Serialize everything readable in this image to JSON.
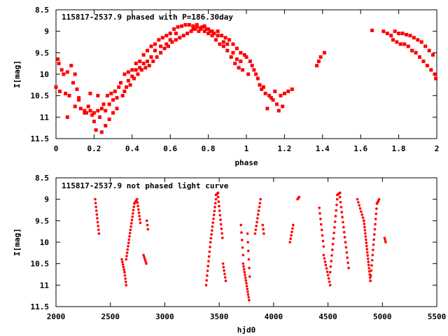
{
  "chart_data": [
    {
      "type": "scatter",
      "title": "115817-2537.9 phased with P=186.30day",
      "xlabel": "phase",
      "ylabel": "I[mag]",
      "xlim": [
        0,
        2
      ],
      "ylim": [
        11.5,
        8.5
      ],
      "y_inverted": true,
      "xticks": [
        0,
        0.2,
        0.4,
        0.6,
        0.8,
        1,
        1.2,
        1.4,
        1.6,
        1.8,
        2
      ],
      "xtick_labels": [
        "0",
        "0.2",
        "0.4",
        "0.6",
        "0.8",
        "1",
        "1.2",
        "1.4",
        "1.6",
        "1.8",
        "2"
      ],
      "yticks": [
        8.5,
        9,
        9.5,
        10,
        10.5,
        11,
        11.5
      ],
      "ytick_labels": [
        "8.5",
        "9",
        "9.5",
        "10",
        "10.5",
        "11",
        "11.5"
      ],
      "grid": false,
      "marker_color": "#ff0000",
      "points": [
        [
          0.0,
          10.3
        ],
        [
          0.01,
          9.65
        ],
        [
          0.015,
          9.75
        ],
        [
          0.02,
          10.4
        ],
        [
          0.03,
          9.9
        ],
        [
          0.04,
          10.0
        ],
        [
          0.05,
          10.45
        ],
        [
          0.06,
          9.95
        ],
        [
          0.07,
          10.5
        ],
        [
          0.08,
          9.8
        ],
        [
          0.09,
          10.2
        ],
        [
          0.1,
          10.0
        ],
        [
          0.11,
          10.35
        ],
        [
          0.12,
          10.6
        ],
        [
          0.13,
          10.8
        ],
        [
          0.15,
          10.9
        ],
        [
          0.1,
          10.75
        ],
        [
          0.12,
          10.55
        ],
        [
          0.06,
          11.0
        ],
        [
          0.18,
          10.45
        ],
        [
          0.19,
          10.95
        ],
        [
          0.2,
          11.1
        ],
        [
          0.21,
          11.3
        ],
        [
          0.22,
          10.5
        ],
        [
          0.23,
          11.0
        ],
        [
          0.24,
          11.35
        ],
        [
          0.25,
          10.7
        ],
        [
          0.26,
          11.2
        ],
        [
          0.27,
          10.5
        ],
        [
          0.28,
          11.05
        ],
        [
          0.29,
          10.45
        ],
        [
          0.3,
          10.9
        ],
        [
          0.31,
          10.4
        ],
        [
          0.32,
          10.8
        ],
        [
          0.33,
          10.3
        ],
        [
          0.15,
          10.85
        ],
        [
          0.16,
          10.9
        ],
        [
          0.17,
          10.75
        ],
        [
          0.18,
          10.85
        ],
        [
          0.2,
          10.9
        ],
        [
          0.22,
          10.85
        ],
        [
          0.24,
          10.8
        ],
        [
          0.26,
          10.85
        ],
        [
          0.28,
          10.7
        ],
        [
          0.3,
          10.6
        ],
        [
          0.32,
          10.55
        ],
        [
          0.34,
          10.2
        ],
        [
          0.35,
          10.5
        ],
        [
          0.36,
          10.0
        ],
        [
          0.37,
          10.3
        ],
        [
          0.38,
          9.95
        ],
        [
          0.39,
          10.25
        ],
        [
          0.4,
          9.9
        ],
        [
          0.41,
          10.1
        ],
        [
          0.42,
          9.75
        ],
        [
          0.43,
          10.0
        ],
        [
          0.44,
          9.7
        ],
        [
          0.45,
          9.9
        ],
        [
          0.46,
          9.55
        ],
        [
          0.47,
          9.85
        ],
        [
          0.48,
          9.45
        ],
        [
          0.49,
          9.8
        ],
        [
          0.5,
          9.35
        ],
        [
          0.36,
          10.4
        ],
        [
          0.38,
          10.15
        ],
        [
          0.4,
          10.05
        ],
        [
          0.42,
          9.9
        ],
        [
          0.44,
          9.85
        ],
        [
          0.46,
          9.75
        ],
        [
          0.48,
          9.7
        ],
        [
          0.5,
          9.6
        ],
        [
          0.51,
          9.7
        ],
        [
          0.52,
          9.3
        ],
        [
          0.53,
          9.6
        ],
        [
          0.54,
          9.2
        ],
        [
          0.55,
          9.5
        ],
        [
          0.56,
          9.15
        ],
        [
          0.57,
          9.4
        ],
        [
          0.58,
          9.1
        ],
        [
          0.59,
          9.35
        ],
        [
          0.6,
          9.05
        ],
        [
          0.61,
          9.25
        ],
        [
          0.62,
          8.95
        ],
        [
          0.63,
          9.2
        ],
        [
          0.64,
          8.9
        ],
        [
          0.65,
          9.15
        ],
        [
          0.66,
          8.88
        ],
        [
          0.67,
          9.1
        ],
        [
          0.68,
          8.85
        ],
        [
          0.69,
          9.05
        ],
        [
          0.7,
          8.85
        ],
        [
          0.52,
          9.45
        ],
        [
          0.55,
          9.35
        ],
        [
          0.58,
          9.3
        ],
        [
          0.6,
          9.2
        ],
        [
          0.63,
          9.05
        ],
        [
          0.71,
          9.0
        ],
        [
          0.72,
          8.88
        ],
        [
          0.73,
          8.95
        ],
        [
          0.74,
          8.9
        ],
        [
          0.75,
          9.0
        ],
        [
          0.76,
          8.92
        ],
        [
          0.77,
          8.9
        ],
        [
          0.78,
          9.0
        ],
        [
          0.79,
          8.95
        ],
        [
          0.8,
          9.05
        ],
        [
          0.81,
          9.0
        ],
        [
          0.82,
          9.1
        ],
        [
          0.83,
          9.05
        ],
        [
          0.84,
          9.2
        ],
        [
          0.85,
          9.0
        ],
        [
          0.86,
          9.3
        ],
        [
          0.87,
          9.1
        ],
        [
          0.88,
          9.35
        ],
        [
          0.72,
          8.95
        ],
        [
          0.74,
          8.85
        ],
        [
          0.76,
          8.95
        ],
        [
          0.78,
          8.88
        ],
        [
          0.8,
          8.95
        ],
        [
          0.82,
          9.0
        ],
        [
          0.89,
          9.15
        ],
        [
          0.9,
          9.45
        ],
        [
          0.91,
          9.2
        ],
        [
          0.92,
          9.6
        ],
        [
          0.93,
          9.3
        ],
        [
          0.94,
          9.75
        ],
        [
          0.95,
          9.4
        ],
        [
          0.96,
          9.85
        ],
        [
          0.97,
          9.5
        ],
        [
          0.98,
          9.9
        ],
        [
          0.99,
          9.55
        ],
        [
          1.0,
          9.6
        ],
        [
          1.01,
          10.0
        ],
        [
          1.02,
          9.7
        ],
        [
          1.03,
          9.8
        ],
        [
          1.04,
          9.9
        ],
        [
          1.05,
          10.0
        ],
        [
          0.85,
          9.1
        ],
        [
          0.88,
          9.25
        ],
        [
          0.9,
          9.3
        ],
        [
          0.93,
          9.5
        ],
        [
          0.95,
          9.65
        ],
        [
          0.97,
          9.7
        ],
        [
          1.06,
          10.1
        ],
        [
          1.07,
          10.25
        ],
        [
          1.08,
          10.35
        ],
        [
          1.09,
          10.3
        ],
        [
          1.1,
          10.45
        ],
        [
          1.11,
          10.8
        ],
        [
          1.12,
          10.5
        ],
        [
          1.13,
          10.55
        ],
        [
          1.14,
          10.6
        ],
        [
          1.15,
          10.4
        ],
        [
          1.16,
          10.7
        ],
        [
          1.17,
          10.85
        ],
        [
          1.18,
          10.5
        ],
        [
          1.19,
          10.75
        ],
        [
          1.2,
          10.45
        ],
        [
          1.22,
          10.4
        ],
        [
          1.24,
          10.35
        ],
        [
          1.37,
          9.8
        ],
        [
          1.38,
          9.7
        ],
        [
          1.39,
          9.6
        ],
        [
          1.41,
          9.5
        ],
        [
          1.66,
          8.98
        ],
        [
          1.72,
          9.0
        ],
        [
          1.74,
          9.05
        ],
        [
          1.76,
          9.1
        ],
        [
          1.77,
          9.2
        ],
        [
          1.78,
          9.0
        ],
        [
          1.79,
          9.25
        ],
        [
          1.8,
          9.05
        ],
        [
          1.81,
          9.3
        ],
        [
          1.82,
          9.05
        ],
        [
          1.83,
          9.3
        ],
        [
          1.84,
          9.08
        ],
        [
          1.85,
          9.35
        ],
        [
          1.86,
          9.1
        ],
        [
          1.87,
          9.45
        ],
        [
          1.88,
          9.15
        ],
        [
          1.89,
          9.5
        ],
        [
          1.9,
          9.2
        ],
        [
          1.91,
          9.6
        ],
        [
          1.92,
          9.25
        ],
        [
          1.93,
          9.7
        ],
        [
          1.94,
          9.35
        ],
        [
          1.95,
          9.8
        ],
        [
          1.96,
          9.45
        ],
        [
          1.97,
          9.9
        ],
        [
          1.98,
          9.55
        ],
        [
          1.99,
          10.0
        ],
        [
          1.995,
          10.1
        ]
      ]
    },
    {
      "type": "scatter",
      "title": "115817-2537.9 not phased light curve",
      "xlabel": "hjd0",
      "ylabel": "I[mag]",
      "xlim": [
        2000,
        5500
      ],
      "ylim": [
        11.5,
        8.5
      ],
      "y_inverted": true,
      "xticks": [
        2000,
        2500,
        3000,
        3500,
        4000,
        4500,
        5000,
        5500
      ],
      "xtick_labels": [
        "2000",
        "2500",
        "3000",
        "3500",
        "4000",
        "4500",
        "5000",
        "5500"
      ],
      "yticks": [
        8.5,
        9,
        9.5,
        10,
        10.5,
        11,
        11.5
      ],
      "ytick_labels": [
        "8.5",
        "9",
        "9.5",
        "10",
        "10.5",
        "11",
        "11.5"
      ],
      "grid": false,
      "marker_color": "#ff0000",
      "segments": [
        {
          "x0": 2360,
          "x1": 2395,
          "y0": 9.0,
          "y1": 9.8,
          "n": 10
        },
        {
          "x0": 2605,
          "x1": 2630,
          "y0": 10.4,
          "y1": 10.7,
          "n": 6
        },
        {
          "x0": 2630,
          "x1": 2645,
          "y0": 10.7,
          "y1": 11.0,
          "n": 5
        },
        {
          "x0": 2645,
          "x1": 2720,
          "y0": 10.4,
          "y1": 9.1,
          "n": 18
        },
        {
          "x0": 2720,
          "x1": 2745,
          "y0": 9.1,
          "y1": 9.0,
          "n": 5
        },
        {
          "x0": 2745,
          "x1": 2775,
          "y0": 9.0,
          "y1": 9.55,
          "n": 8
        },
        {
          "x0": 2805,
          "x1": 2830,
          "y0": 10.3,
          "y1": 10.5,
          "n": 5
        },
        {
          "x0": 2835,
          "x1": 2845,
          "y0": 9.5,
          "y1": 9.7,
          "n": 3
        },
        {
          "x0": 3380,
          "x1": 3420,
          "y0": 11.0,
          "y1": 10.0,
          "n": 10
        },
        {
          "x0": 3420,
          "x1": 3470,
          "y0": 10.0,
          "y1": 9.0,
          "n": 12
        },
        {
          "x0": 3470,
          "x1": 3490,
          "y0": 8.9,
          "y1": 8.85,
          "n": 5
        },
        {
          "x0": 3490,
          "x1": 3530,
          "y0": 8.95,
          "y1": 9.9,
          "n": 10
        },
        {
          "x0": 3535,
          "x1": 3560,
          "y0": 10.5,
          "y1": 10.9,
          "n": 6
        },
        {
          "x0": 3700,
          "x1": 3720,
          "y0": 9.6,
          "y1": 10.3,
          "n": 5
        },
        {
          "x0": 3720,
          "x1": 3775,
          "y0": 10.5,
          "y1": 11.35,
          "n": 14
        },
        {
          "x0": 3760,
          "x1": 3780,
          "y0": 9.8,
          "y1": 10.8,
          "n": 6
        },
        {
          "x0": 3830,
          "x1": 3880,
          "y0": 9.8,
          "y1": 9.0,
          "n": 10
        },
        {
          "x0": 3900,
          "x1": 3910,
          "y0": 9.6,
          "y1": 9.8,
          "n": 3
        },
        {
          "x0": 4150,
          "x1": 4180,
          "y0": 10.0,
          "y1": 9.6,
          "n": 6
        },
        {
          "x0": 4220,
          "x1": 4235,
          "y0": 9.0,
          "y1": 8.95,
          "n": 3
        },
        {
          "x0": 4420,
          "x1": 4460,
          "y0": 9.2,
          "y1": 10.1,
          "n": 8
        },
        {
          "x0": 4460,
          "x1": 4520,
          "y0": 10.3,
          "y1": 11.0,
          "n": 10
        },
        {
          "x0": 4520,
          "x1": 4585,
          "y0": 10.7,
          "y1": 9.0,
          "n": 14
        },
        {
          "x0": 4585,
          "x1": 4610,
          "y0": 8.9,
          "y1": 8.85,
          "n": 6
        },
        {
          "x0": 4610,
          "x1": 4660,
          "y0": 8.95,
          "y1": 10.0,
          "n": 10
        },
        {
          "x0": 4660,
          "x1": 4690,
          "y0": 10.0,
          "y1": 10.6,
          "n": 6
        },
        {
          "x0": 4770,
          "x1": 4830,
          "y0": 9.0,
          "y1": 9.5,
          "n": 8
        },
        {
          "x0": 4830,
          "x1": 4890,
          "y0": 9.5,
          "y1": 10.9,
          "n": 20
        },
        {
          "x0": 4890,
          "x1": 4950,
          "y0": 10.9,
          "y1": 9.1,
          "n": 16
        },
        {
          "x0": 4950,
          "x1": 4970,
          "y0": 9.1,
          "y1": 9.0,
          "n": 4
        },
        {
          "x0": 5020,
          "x1": 5030,
          "y0": 9.9,
          "y1": 10.0,
          "n": 3
        }
      ]
    }
  ]
}
